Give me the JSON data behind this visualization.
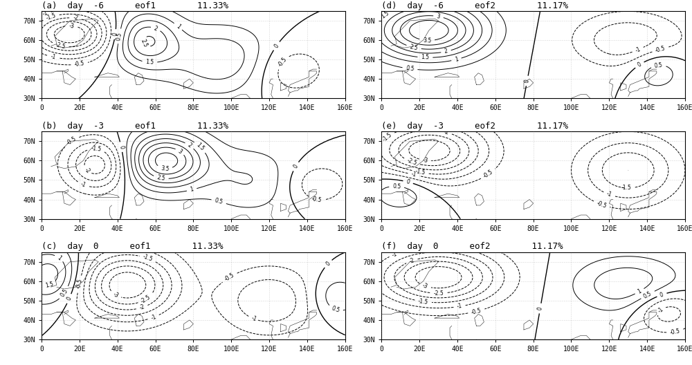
{
  "panels": [
    {
      "label": "(a)",
      "day": -6,
      "eof": 1,
      "pct": "11.33%",
      "row": 0,
      "col": 0
    },
    {
      "label": "(b)",
      "day": -3,
      "eof": 1,
      "pct": "11.33%",
      "row": 1,
      "col": 0
    },
    {
      "label": "(c)",
      "day": 0,
      "eof": 1,
      "pct": "11.33%",
      "row": 2,
      "col": 0
    },
    {
      "label": "(d)",
      "day": -6,
      "eof": 2,
      "pct": "11.17%",
      "row": 0,
      "col": 1
    },
    {
      "label": "(e)",
      "day": -3,
      "eof": 2,
      "pct": "11.17%",
      "row": 1,
      "col": 1
    },
    {
      "label": "(f)",
      "day": 0,
      "eof": 2,
      "pct": "11.17%",
      "row": 2,
      "col": 1
    }
  ],
  "lon_min": 0,
  "lon_max": 160,
  "lat_min": 30,
  "lat_max": 75,
  "lon_ticks": [
    0,
    20,
    40,
    60,
    80,
    100,
    120,
    140,
    160
  ],
  "lat_ticks": [
    30,
    40,
    50,
    60,
    70
  ],
  "contour_levels": [
    -4.0,
    -3.5,
    -3.0,
    -2.5,
    -2.0,
    -1.5,
    -1.0,
    -0.5,
    0.0,
    0.5,
    1.0,
    1.5,
    2.0,
    2.5,
    3.0,
    3.5,
    4.0
  ],
  "background_color": "#ffffff",
  "title_fontsize": 9,
  "tick_fontsize": 7,
  "hspace": 0.38,
  "wspace": 0.12
}
